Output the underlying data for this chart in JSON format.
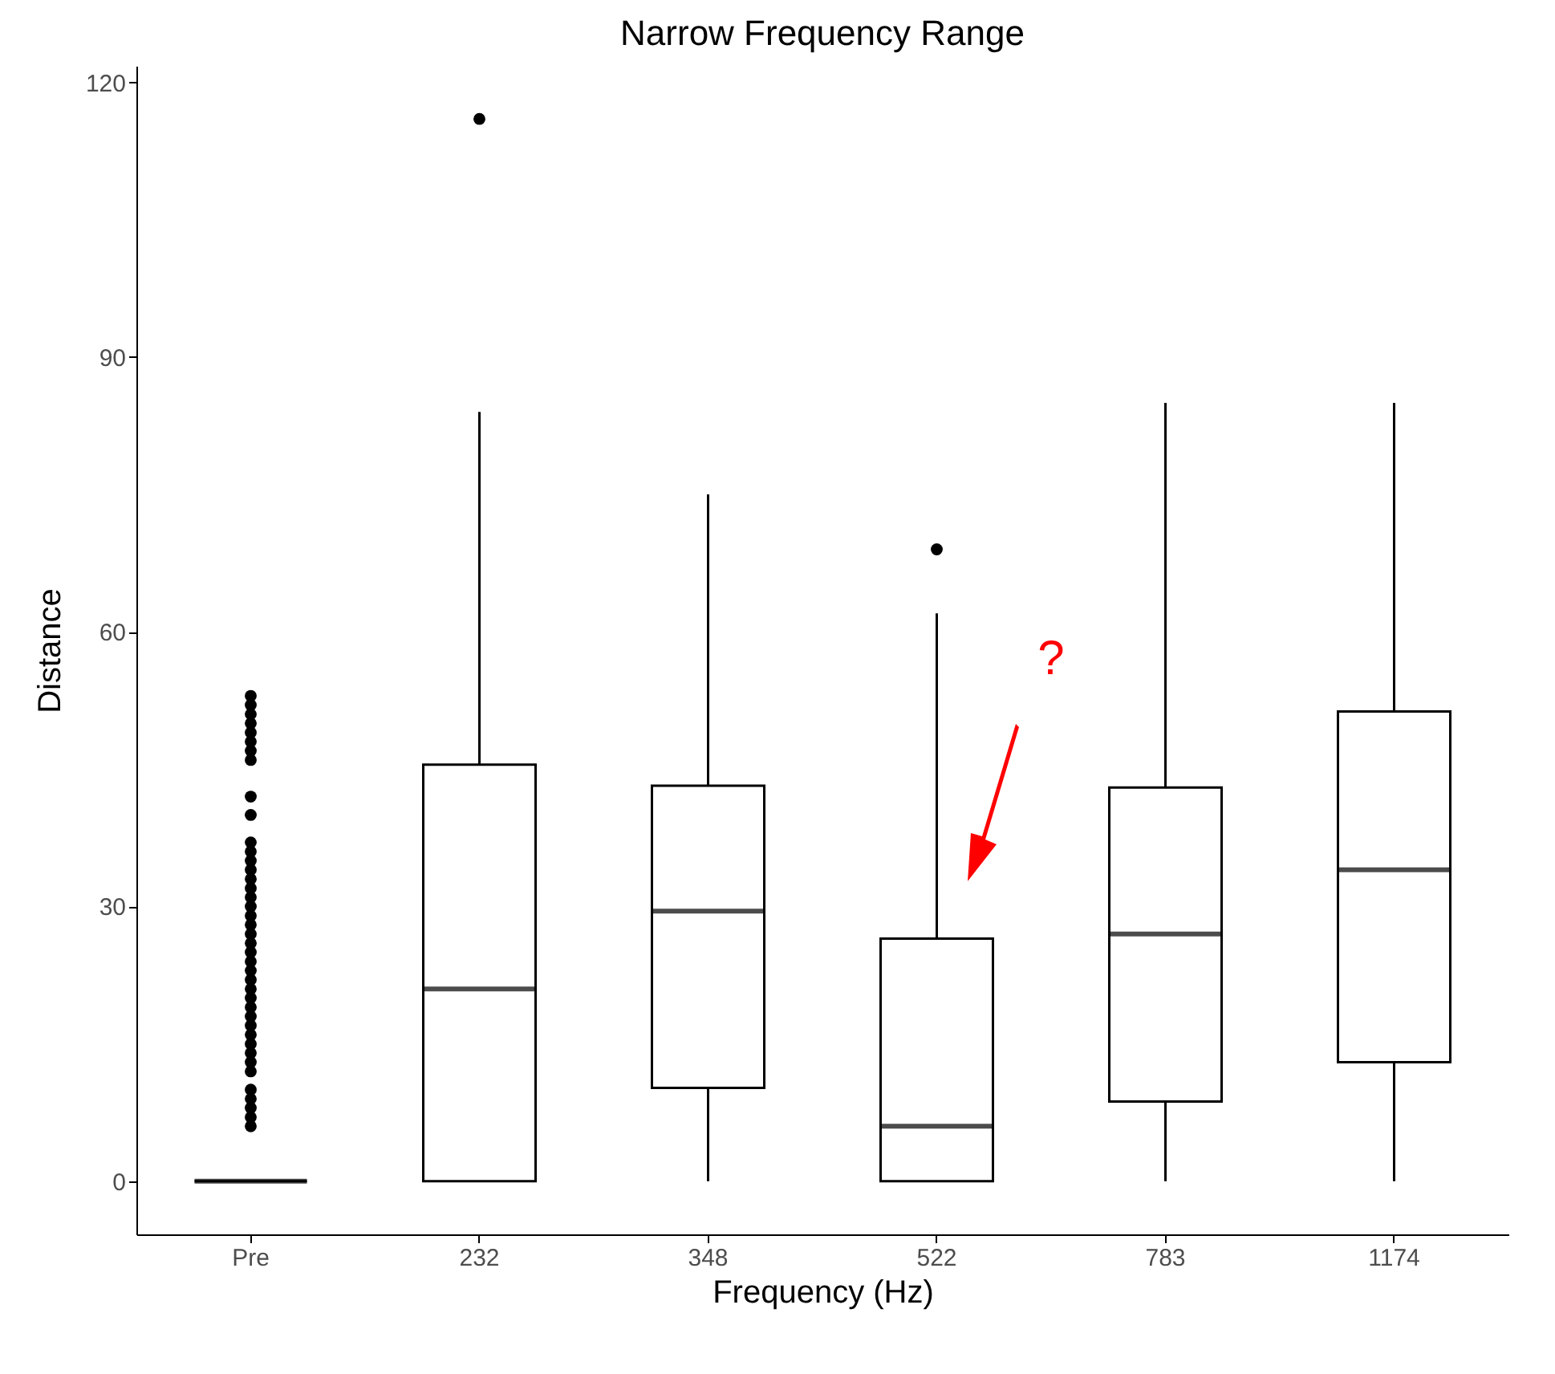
{
  "chart_data": {
    "type": "box",
    "title": "Narrow Frequency Range",
    "xlabel": "Frequency (Hz)",
    "ylabel": "Distance",
    "categories": [
      "Pre",
      "232",
      "348",
      "522",
      "783",
      "1174"
    ],
    "boxes": [
      {
        "low": 0,
        "q1": 0,
        "median": 0,
        "q3": 0,
        "high": 0,
        "outliers": [
          53,
          52,
          51,
          50,
          49,
          48,
          47,
          46,
          42,
          40,
          37,
          36,
          35,
          34,
          33,
          32,
          31,
          30,
          29,
          28,
          27,
          26,
          25,
          24,
          23,
          22,
          21,
          20,
          19,
          18,
          17,
          16,
          15,
          14,
          13,
          12,
          10,
          9,
          8,
          7,
          6
        ]
      },
      {
        "low": 0,
        "q1": 0,
        "median": 21,
        "q3": 45.5,
        "high": 84,
        "outliers": [
          116
        ]
      },
      {
        "low": 0,
        "q1": 10.2,
        "median": 29.5,
        "q3": 43.2,
        "high": 75
      },
      {
        "low": 0,
        "q1": 0,
        "median": 6,
        "q3": 26.5,
        "high": 62,
        "outliers": [
          69
        ]
      },
      {
        "low": 0,
        "q1": 8.7,
        "median": 27,
        "q3": 43,
        "high": 85
      },
      {
        "low": 0,
        "q1": 13,
        "median": 34,
        "q3": 51.3,
        "high": 85
      }
    ],
    "color": "#000000",
    "ylim": [
      -5.8,
      121.8
    ],
    "yticks": [
      0,
      30,
      60,
      90,
      120
    ],
    "grid": false,
    "annotations": [
      "?"
    ]
  }
}
